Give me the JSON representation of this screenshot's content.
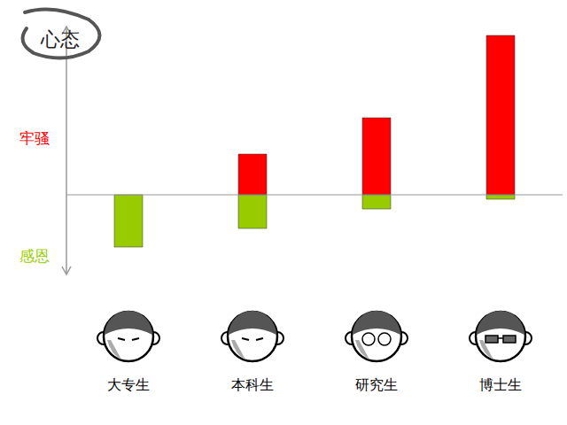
{
  "chart_data": {
    "type": "bar",
    "title": "心态",
    "categories": [
      "大专生",
      "本科生",
      "研究生",
      "博士生"
    ],
    "series": [
      {
        "name": "牢骚",
        "color": "#ff0000",
        "values": [
          0,
          46,
          87,
          180
        ]
      },
      {
        "name": "感恩",
        "color": "#99cc00",
        "values": [
          -59,
          -38,
          -16,
          -5
        ]
      }
    ],
    "ylim": [
      -90,
      190
    ],
    "stacked": true,
    "tick_labels": "x"
  }
}
